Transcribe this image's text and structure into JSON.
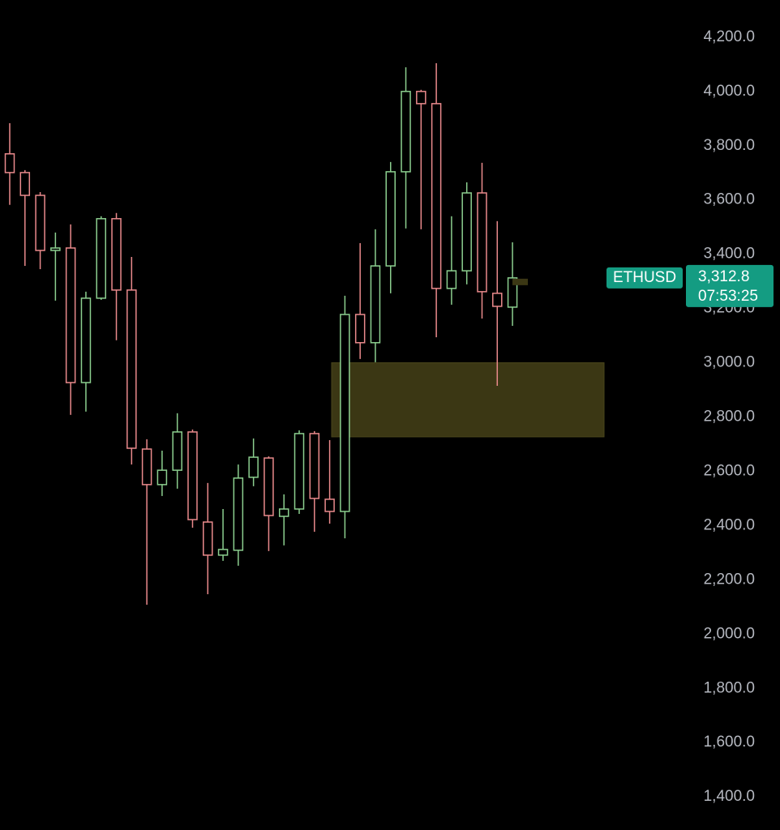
{
  "chart_data": {
    "type": "candlestick",
    "symbol": "ETHUSD",
    "last": {
      "value": 3312.8,
      "label": "3,312.8"
    },
    "countdown": "07:53:25",
    "up_color": "#8ccf8f",
    "down_color": "#ea8a8c",
    "zone_color": "#3b3714",
    "zone": {
      "top": 3000,
      "bottom": 2727
    },
    "open": [
      3770,
      3701,
      3617,
      3414,
      3423,
      2927,
      3238,
      3531,
      3268,
      2682,
      2551,
      2604,
      2745,
      2413,
      2291,
      2309,
      2578,
      2649,
      2434,
      2461,
      2739,
      2497,
      2452,
      3178,
      3074,
      3357,
      3704,
      4000,
      3955,
      3274,
      3339,
      3626,
      3256,
      3205
    ],
    "high": [
      3883,
      3710,
      3629,
      3480,
      3510,
      3262,
      3540,
      3552,
      3390,
      2718,
      2676,
      2814,
      2754,
      2557,
      2461,
      2625,
      2721,
      2655,
      2515,
      2751,
      2748,
      2715,
      3247,
      3441,
      3492,
      3740,
      4089,
      4006,
      4104,
      3540,
      3665,
      3737,
      3522,
      3444
    ],
    "low": [
      3582,
      3357,
      3345,
      3229,
      2808,
      2820,
      3232,
      3083,
      2625,
      2108,
      2509,
      2536,
      2392,
      2147,
      2270,
      2252,
      2545,
      2306,
      2327,
      2443,
      2377,
      2407,
      2353,
      3014,
      3002,
      3256,
      3495,
      3492,
      3094,
      3214,
      3289,
      3163,
      2915,
      3136
    ],
    "close": [
      3701,
      3617,
      3414,
      3423,
      2927,
      3238,
      3531,
      3268,
      2685,
      2551,
      2604,
      2745,
      2422,
      2291,
      2312,
      2575,
      2652,
      2437,
      2461,
      2739,
      2500,
      2452,
      3178,
      3074,
      3357,
      3704,
      4000,
      3955,
      3274,
      3339,
      3626,
      3262,
      3208,
      3312.8
    ],
    "ylim": [
      1278,
      4337
    ],
    "yticks": [
      {
        "value": 1400,
        "label": "1,400.0"
      },
      {
        "value": 1600,
        "label": "1,600.0"
      },
      {
        "value": 1800,
        "label": "1,800.0"
      },
      {
        "value": 2000,
        "label": "2,000.0"
      },
      {
        "value": 2200,
        "label": "2,200.0"
      },
      {
        "value": 2400,
        "label": "2,400.0"
      },
      {
        "value": 2600,
        "label": "2,600.0"
      },
      {
        "value": 2800,
        "label": "2,800.0"
      },
      {
        "value": 3000,
        "label": "3,000.0"
      },
      {
        "value": 3200,
        "label": "3,200.0"
      },
      {
        "value": 3400,
        "label": "3,400.0"
      },
      {
        "value": 3600,
        "label": "3,600.0"
      },
      {
        "value": 3800,
        "label": "3,800.0"
      },
      {
        "value": 4000,
        "label": "4,000.0"
      },
      {
        "value": 4200,
        "label": "4,200.0"
      }
    ]
  }
}
